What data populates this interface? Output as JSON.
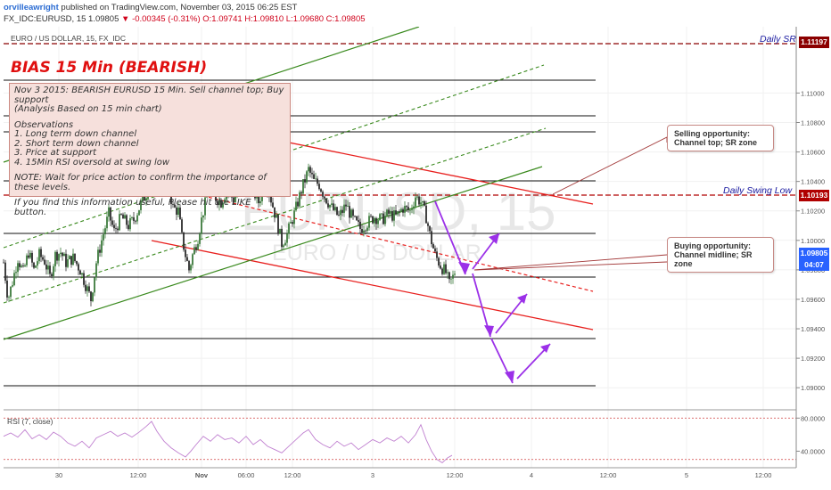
{
  "header": {
    "author": "orvilleawright",
    "published": "published on TradingView.com, November 03, 2015 06:25 EST",
    "symbol": "FX_IDC:EURUSD, 15",
    "last": "1.09805",
    "change": "-0.00345 (-0.31%)",
    "ohlc": "O:1.09741 H:1.09810 L:1.09680 C:1.09805"
  },
  "symbol_line": "EURO / US DOLLAR, 15, FX_IDC",
  "watermark": {
    "big": "EURUSD, 15",
    "small": "EURO / US DOLLAR"
  },
  "bias_title": "BIAS 15 Min (BEARISH)",
  "note_box": {
    "line1": "Nov 3 2015: BEARISH EURUSD 15 Min. Sell channel top; Buy support",
    "line2": "(Analysis Based on 15 min chart)",
    "obs_title": "Observations",
    "obs1": "1. Long term down channel",
    "obs2": "2. Short term down channel",
    "obs3": "3. Price at support",
    "obs4": "4. 15Min RSI oversold at swing low",
    "note": "NOTE: Wait for price action to confirm the importance of these levels.",
    "footer": "If you find this information useful, Please hit the LIKE button."
  },
  "callouts": {
    "sell": [
      "Selling opportunity:",
      "Channel top; SR zone"
    ],
    "buy": [
      "Buying opportunity:",
      "Channel midline; SR",
      "zone"
    ]
  },
  "levels": {
    "daily_sr": {
      "label": "Daily SR",
      "price": "1.11197",
      "color": "#8b0000"
    },
    "daily_swing_low": {
      "label": "Daily Swing Low",
      "price": "1.10193",
      "color": "#b00000"
    }
  },
  "last_price_tag": {
    "price": "1.09805",
    "time": "04:07",
    "color": "#2962ff"
  },
  "rsi_label": "RSI (7, close)",
  "colors": {
    "up_candle": "#3c7a3c",
    "down_candle": "#2c2c2c",
    "red_channel": "#e8201e",
    "green_channel": "#3a8a1e",
    "arrow": "#9b30e8",
    "rsi": "#c080d0"
  },
  "chart_data": {
    "type": "candlestick",
    "price_axis": {
      "ticks": [
        "1.11000",
        "1.10800",
        "1.10600",
        "1.10400",
        "1.10200",
        "1.10000",
        "1.09800",
        "1.09600",
        "1.09400",
        "1.09200",
        "1.09000"
      ],
      "range": [
        1.0885,
        1.1145
      ]
    },
    "time_axis": [
      "30",
      "12:00",
      "Nov",
      "06:00",
      "12:00",
      "3",
      "12:00",
      "4",
      "12:00",
      "5",
      "12:00"
    ],
    "rsi_axis": [
      "80.0000",
      "40.0000"
    ],
    "price_series": [
      [
        0,
        1.0985
      ],
      [
        5,
        1.096
      ],
      [
        10,
        1.0972
      ],
      [
        16,
        1.0988
      ],
      [
        22,
        1.0978
      ],
      [
        28,
        1.0992
      ],
      [
        34,
        1.098
      ],
      [
        40,
        1.099
      ],
      [
        46,
        1.0986
      ],
      [
        52,
        1.0975
      ],
      [
        58,
        1.099
      ],
      [
        64,
        1.0992
      ],
      [
        70,
        1.0985
      ],
      [
        78,
        1.0988
      ],
      [
        86,
        1.098
      ],
      [
        92,
        1.097
      ],
      [
        98,
        1.096
      ],
      [
        104,
        1.0985
      ],
      [
        110,
        1.1
      ],
      [
        118,
        1.1018
      ],
      [
        124,
        1.1006
      ],
      [
        132,
        1.1016
      ],
      [
        140,
        1.101
      ],
      [
        146,
        1.1014
      ],
      [
        152,
        1.1022
      ],
      [
        160,
        1.1032
      ],
      [
        166,
        1.1055
      ],
      [
        170,
        1.1072
      ],
      [
        174,
        1.106
      ],
      [
        178,
        1.1068
      ],
      [
        184,
        1.104
      ],
      [
        190,
        1.1022
      ],
      [
        196,
        1.102
      ],
      [
        200,
        1.1002
      ],
      [
        204,
        1.099
      ],
      [
        208,
        1.098
      ],
      [
        212,
        1.099
      ],
      [
        218,
        1.1002
      ],
      [
        224,
        1.102
      ],
      [
        230,
        1.1034
      ],
      [
        236,
        1.103
      ],
      [
        244,
        1.1026
      ],
      [
        250,
        1.1034
      ],
      [
        258,
        1.1028
      ],
      [
        264,
        1.1034
      ],
      [
        270,
        1.104
      ],
      [
        278,
        1.1036
      ],
      [
        286,
        1.1026
      ],
      [
        294,
        1.104
      ],
      [
        300,
        1.1028
      ],
      [
        306,
        1.1014
      ],
      [
        312,
        1.0998
      ],
      [
        318,
        1.1004
      ],
      [
        326,
        1.1018
      ],
      [
        334,
        1.1034
      ],
      [
        342,
        1.1048
      ],
      [
        348,
        1.104
      ],
      [
        354,
        1.1038
      ],
      [
        360,
        1.103
      ],
      [
        368,
        1.1022
      ],
      [
        376,
        1.1016
      ],
      [
        384,
        1.1024
      ],
      [
        392,
        1.1014
      ],
      [
        400,
        1.1008
      ],
      [
        408,
        1.1012
      ],
      [
        416,
        1.1016
      ],
      [
        424,
        1.1014
      ],
      [
        432,
        1.1018
      ],
      [
        440,
        1.1016
      ],
      [
        448,
        1.1022
      ],
      [
        456,
        1.102
      ],
      [
        462,
        1.103
      ],
      [
        468,
        1.1026
      ],
      [
        474,
        1.1016
      ],
      [
        478,
        1.1004
      ],
      [
        484,
        1.099
      ],
      [
        490,
        1.0983
      ],
      [
        496,
        1.0978
      ],
      [
        500,
        1.097
      ],
      [
        504,
        1.0975
      ],
      [
        507,
        1.09805
      ]
    ],
    "rsi_series": [
      [
        0,
        58
      ],
      [
        8,
        62
      ],
      [
        16,
        57
      ],
      [
        24,
        66
      ],
      [
        32,
        55
      ],
      [
        40,
        60
      ],
      [
        48,
        54
      ],
      [
        56,
        63
      ],
      [
        64,
        58
      ],
      [
        72,
        50
      ],
      [
        80,
        46
      ],
      [
        88,
        52
      ],
      [
        96,
        44
      ],
      [
        104,
        56
      ],
      [
        112,
        60
      ],
      [
        120,
        64
      ],
      [
        128,
        58
      ],
      [
        136,
        62
      ],
      [
        144,
        57
      ],
      [
        152,
        63
      ],
      [
        160,
        70
      ],
      [
        166,
        76
      ],
      [
        172,
        64
      ],
      [
        180,
        52
      ],
      [
        188,
        44
      ],
      [
        196,
        38
      ],
      [
        204,
        33
      ],
      [
        210,
        40
      ],
      [
        216,
        48
      ],
      [
        224,
        58
      ],
      [
        232,
        52
      ],
      [
        240,
        60
      ],
      [
        248,
        54
      ],
      [
        256,
        56
      ],
      [
        264,
        50
      ],
      [
        272,
        58
      ],
      [
        280,
        48
      ],
      [
        288,
        54
      ],
      [
        296,
        46
      ],
      [
        304,
        42
      ],
      [
        312,
        38
      ],
      [
        320,
        46
      ],
      [
        328,
        54
      ],
      [
        336,
        62
      ],
      [
        342,
        66
      ],
      [
        350,
        54
      ],
      [
        358,
        48
      ],
      [
        366,
        44
      ],
      [
        374,
        52
      ],
      [
        382,
        46
      ],
      [
        390,
        50
      ],
      [
        398,
        42
      ],
      [
        406,
        48
      ],
      [
        414,
        54
      ],
      [
        422,
        50
      ],
      [
        430,
        56
      ],
      [
        438,
        52
      ],
      [
        446,
        58
      ],
      [
        454,
        50
      ],
      [
        462,
        60
      ],
      [
        468,
        72
      ],
      [
        474,
        54
      ],
      [
        480,
        40
      ],
      [
        486,
        30
      ],
      [
        492,
        26
      ],
      [
        498,
        32
      ],
      [
        503,
        35
      ]
    ]
  }
}
